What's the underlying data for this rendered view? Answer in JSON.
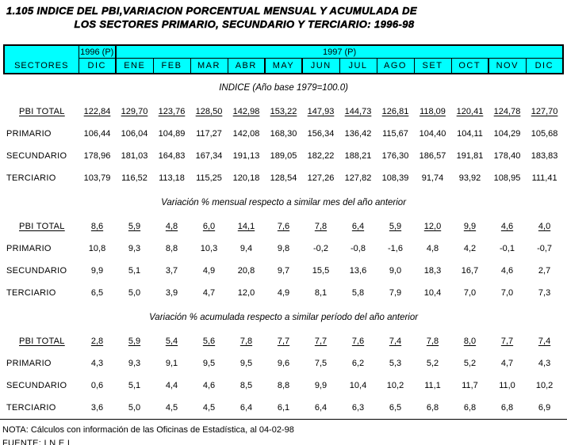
{
  "title": {
    "line1": "1.105  INDICE DEL PBI,VARIACION PORCENTUAL MENSUAL Y ACUMULADA DE",
    "line2": "LOS SECTORES PRIMARIO, SECUNDARIO Y TERCIARIO: 1996-98"
  },
  "table": {
    "sectors_header": "SECTORES",
    "year1_label": "1996 (P)",
    "year2_label": "1997 (P)",
    "months": [
      "DIC",
      "ENE",
      "FEB",
      "MAR",
      "ABR",
      "MAY",
      "JUN",
      "JUL",
      "AGO",
      "SET",
      "OCT",
      "NOV",
      "DIC"
    ],
    "sections": [
      {
        "title": "INDICE (Año base 1979=100.0)",
        "rows": [
          {
            "label": "PBI TOTAL",
            "underline": true,
            "values": [
              "122,84",
              "129,70",
              "123,76",
              "128,50",
              "142,98",
              "153,22",
              "147,93",
              "144,73",
              "126,81",
              "118,09",
              "120,41",
              "124,78",
              "127,70"
            ]
          },
          {
            "label": "PRIMARIO",
            "values": [
              "106,44",
              "106,04",
              "104,89",
              "117,27",
              "142,08",
              "168,30",
              "156,34",
              "136,42",
              "115,67",
              "104,40",
              "104,11",
              "104,29",
              "105,68"
            ]
          },
          {
            "label": "SECUNDARIO",
            "values": [
              "178,96",
              "181,03",
              "164,83",
              "167,34",
              "191,13",
              "189,05",
              "182,22",
              "188,21",
              "176,30",
              "186,57",
              "191,81",
              "178,40",
              "183,83"
            ]
          },
          {
            "label": "TERCIARIO",
            "values": [
              "103,79",
              "116,52",
              "113,18",
              "115,25",
              "120,18",
              "128,54",
              "127,26",
              "127,82",
              "108,39",
              "91,74",
              "93,92",
              "108,95",
              "111,41"
            ]
          }
        ]
      },
      {
        "title": "Variación % mensual respecto a similar mes del año anterior",
        "rows": [
          {
            "label": "PBI TOTAL",
            "underline": true,
            "values": [
              "8,6",
              "5,9",
              "4,8",
              "6,0",
              "14,1",
              "7,6",
              "7,8",
              "6,4",
              "5,9",
              "12,0",
              "9,9",
              "4,6",
              "4,0"
            ]
          },
          {
            "label": "PRIMARIO",
            "values": [
              "10,8",
              "9,3",
              "8,8",
              "10,3",
              "9,4",
              "9,8",
              "-0,2",
              "-0,8",
              "-1,6",
              "4,8",
              "4,2",
              "-0,1",
              "-0,7"
            ]
          },
          {
            "label": "SECUNDARIO",
            "values": [
              "9,9",
              "5,1",
              "3,7",
              "4,9",
              "20,8",
              "9,7",
              "15,5",
              "13,6",
              "9,0",
              "18,3",
              "16,7",
              "4,6",
              "2,7"
            ]
          },
          {
            "label": "TERCIARIO",
            "values": [
              "6,5",
              "5,0",
              "3,9",
              "4,7",
              "12,0",
              "4,9",
              "8,1",
              "5,8",
              "7,9",
              "10,4",
              "7,0",
              "7,0",
              "7,3"
            ]
          }
        ]
      },
      {
        "title": "Variación % acumulada respecto a similar período del año anterior",
        "rows": [
          {
            "label": "PBI TOTAL",
            "underline": true,
            "values": [
              "2,8",
              "5,9",
              "5,4",
              "5,6",
              "7,8",
              "7,7",
              "7,7",
              "7,6",
              "7,4",
              "7,8",
              "8,0",
              "7,7",
              "7,4"
            ]
          },
          {
            "label": "PRIMARIO",
            "values": [
              "4,3",
              "9,3",
              "9,1",
              "9,5",
              "9,5",
              "9,6",
              "7,5",
              "6,2",
              "5,3",
              "5,2",
              "5,2",
              "4,7",
              "4,3"
            ]
          },
          {
            "label": "SECUNDARIO",
            "values": [
              "0,6",
              "5,1",
              "4,4",
              "4,6",
              "8,5",
              "8,8",
              "9,9",
              "10,4",
              "10,2",
              "11,1",
              "11,7",
              "11,0",
              "10,2"
            ]
          },
          {
            "label": "TERCIARIO",
            "values": [
              "3,6",
              "5,0",
              "4,5",
              "4,5",
              "6,4",
              "6,1",
              "6,4",
              "6,3",
              "6,5",
              "6,8",
              "6,8",
              "6,8",
              "6,9"
            ]
          }
        ]
      }
    ]
  },
  "footer": {
    "nota": "NOTA: Cálculos con información de las Oficinas de Estadística, al 04-02-98",
    "fuente": "FUENTE: I N E I"
  },
  "colors": {
    "header_bg": "#00FFFF",
    "border": "#000000",
    "text": "#000000"
  }
}
